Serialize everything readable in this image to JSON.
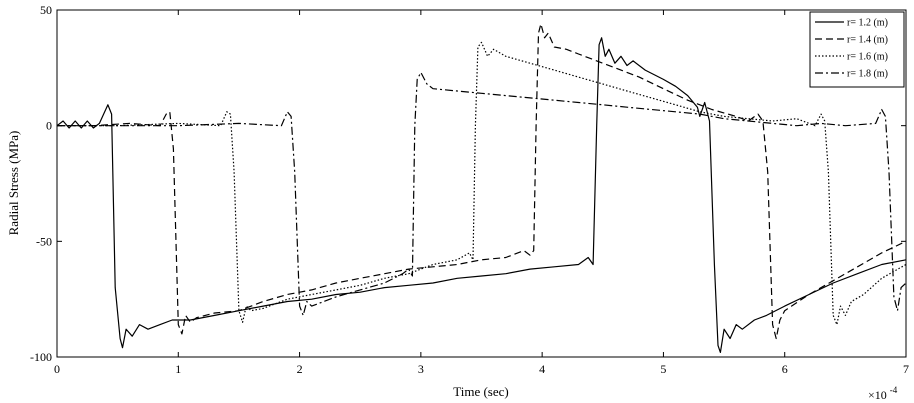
{
  "chart_data": {
    "type": "line",
    "title": "",
    "xlabel": "Time (sec)",
    "ylabel": "Radial Stress (MPa)",
    "x_multiplier_label": "×10",
    "x_multiplier_exponent": "-4",
    "xlim": [
      0,
      7
    ],
    "ylim": [
      -100,
      50
    ],
    "xticks": [
      "0",
      "1",
      "2",
      "3",
      "4",
      "5",
      "6",
      "7"
    ],
    "yticks": [
      "50",
      "0",
      "-50",
      "-100"
    ],
    "ytick_values": [
      50,
      0,
      -50,
      -100
    ],
    "grid": false,
    "legend_position": "top-right",
    "series": [
      {
        "name": "r= 1.2 (m)",
        "style": "solid",
        "color": "#000000",
        "points": [
          [
            0,
            0
          ],
          [
            0.05,
            2
          ],
          [
            0.1,
            -1
          ],
          [
            0.15,
            2
          ],
          [
            0.2,
            -1
          ],
          [
            0.25,
            2
          ],
          [
            0.3,
            -1
          ],
          [
            0.35,
            1
          ],
          [
            0.42,
            9
          ],
          [
            0.45,
            5
          ],
          [
            0.48,
            -70
          ],
          [
            0.52,
            -92
          ],
          [
            0.54,
            -96
          ],
          [
            0.57,
            -88
          ],
          [
            0.62,
            -91
          ],
          [
            0.68,
            -86
          ],
          [
            0.75,
            -88
          ],
          [
            0.85,
            -86
          ],
          [
            0.95,
            -84
          ],
          [
            1.1,
            -84
          ],
          [
            1.3,
            -82
          ],
          [
            1.5,
            -80
          ],
          [
            1.7,
            -78
          ],
          [
            1.9,
            -76
          ],
          [
            2.1,
            -75
          ],
          [
            2.3,
            -73
          ],
          [
            2.5,
            -72
          ],
          [
            2.7,
            -70
          ],
          [
            2.9,
            -69
          ],
          [
            3.1,
            -68
          ],
          [
            3.3,
            -66
          ],
          [
            3.5,
            -65
          ],
          [
            3.7,
            -64
          ],
          [
            3.9,
            -62
          ],
          [
            4.1,
            -61
          ],
          [
            4.3,
            -60
          ],
          [
            4.38,
            -57
          ],
          [
            4.42,
            -60
          ],
          [
            4.45,
            0
          ],
          [
            4.47,
            35
          ],
          [
            4.49,
            38
          ],
          [
            4.52,
            30
          ],
          [
            4.55,
            33
          ],
          [
            4.6,
            27
          ],
          [
            4.65,
            30
          ],
          [
            4.7,
            26
          ],
          [
            4.75,
            28
          ],
          [
            4.85,
            24
          ],
          [
            5.0,
            20
          ],
          [
            5.1,
            17
          ],
          [
            5.2,
            13
          ],
          [
            5.28,
            8
          ],
          [
            5.3,
            4
          ],
          [
            5.34,
            10
          ],
          [
            5.38,
            2
          ],
          [
            5.42,
            -60
          ],
          [
            5.45,
            -95
          ],
          [
            5.47,
            -98
          ],
          [
            5.5,
            -88
          ],
          [
            5.55,
            -92
          ],
          [
            5.6,
            -86
          ],
          [
            5.65,
            -88
          ],
          [
            5.75,
            -84
          ],
          [
            5.85,
            -82
          ],
          [
            6.0,
            -78
          ],
          [
            6.2,
            -73
          ],
          [
            6.4,
            -68
          ],
          [
            6.6,
            -64
          ],
          [
            6.8,
            -60
          ],
          [
            7.0,
            -58
          ]
        ]
      },
      {
        "name": "r= 1.4 (m)",
        "style": "dashed",
        "color": "#000000",
        "points": [
          [
            0,
            0
          ],
          [
            0.3,
            0
          ],
          [
            0.6,
            1
          ],
          [
            0.85,
            0
          ],
          [
            0.9,
            5
          ],
          [
            0.93,
            6
          ],
          [
            0.96,
            -10
          ],
          [
            1.0,
            -86
          ],
          [
            1.03,
            -90
          ],
          [
            1.06,
            -82
          ],
          [
            1.1,
            -85
          ],
          [
            1.15,
            -83
          ],
          [
            1.3,
            -81
          ],
          [
            1.5,
            -80
          ],
          [
            1.7,
            -76
          ],
          [
            1.9,
            -73
          ],
          [
            2.1,
            -71
          ],
          [
            2.3,
            -68
          ],
          [
            2.5,
            -66
          ],
          [
            2.7,
            -64
          ],
          [
            2.9,
            -62
          ],
          [
            3.1,
            -61
          ],
          [
            3.3,
            -60
          ],
          [
            3.5,
            -58
          ],
          [
            3.7,
            -57
          ],
          [
            3.85,
            -54
          ],
          [
            3.9,
            -56
          ],
          [
            3.93,
            -54
          ],
          [
            3.95,
            0
          ],
          [
            3.97,
            40
          ],
          [
            3.99,
            44
          ],
          [
            4.02,
            38
          ],
          [
            4.05,
            40
          ],
          [
            4.1,
            34
          ],
          [
            4.2,
            33
          ],
          [
            4.3,
            31
          ],
          [
            4.4,
            29
          ],
          [
            4.6,
            25
          ],
          [
            4.8,
            21
          ],
          [
            5.0,
            16
          ],
          [
            5.2,
            11
          ],
          [
            5.4,
            7
          ],
          [
            5.6,
            4
          ],
          [
            5.7,
            2
          ],
          [
            5.78,
            5
          ],
          [
            5.82,
            2
          ],
          [
            5.86,
            -20
          ],
          [
            5.9,
            -86
          ],
          [
            5.93,
            -92
          ],
          [
            5.96,
            -84
          ],
          [
            6.0,
            -80
          ],
          [
            6.2,
            -73
          ],
          [
            6.4,
            -67
          ],
          [
            6.6,
            -61
          ],
          [
            6.8,
            -55
          ],
          [
            7.0,
            -50
          ]
        ]
      },
      {
        "name": "r= 1.6 (m)",
        "style": "dotted",
        "color": "#000000",
        "points": [
          [
            0,
            0
          ],
          [
            0.5,
            0
          ],
          [
            1.0,
            1
          ],
          [
            1.35,
            0
          ],
          [
            1.4,
            6
          ],
          [
            1.43,
            5
          ],
          [
            1.46,
            -20
          ],
          [
            1.5,
            -80
          ],
          [
            1.53,
            -85
          ],
          [
            1.56,
            -78
          ],
          [
            1.6,
            -80
          ],
          [
            1.7,
            -79
          ],
          [
            1.9,
            -75
          ],
          [
            2.1,
            -73
          ],
          [
            2.3,
            -71
          ],
          [
            2.5,
            -69
          ],
          [
            2.7,
            -66
          ],
          [
            2.9,
            -64
          ],
          [
            3.1,
            -60
          ],
          [
            3.3,
            -58
          ],
          [
            3.4,
            -55
          ],
          [
            3.43,
            -58
          ],
          [
            3.45,
            0
          ],
          [
            3.47,
            34
          ],
          [
            3.5,
            36
          ],
          [
            3.55,
            30
          ],
          [
            3.6,
            33
          ],
          [
            3.7,
            30
          ],
          [
            3.9,
            27
          ],
          [
            4.1,
            24
          ],
          [
            4.3,
            21
          ],
          [
            4.5,
            18
          ],
          [
            4.7,
            15
          ],
          [
            4.9,
            12
          ],
          [
            5.1,
            9
          ],
          [
            5.3,
            6
          ],
          [
            5.5,
            4
          ],
          [
            5.7,
            3
          ],
          [
            5.9,
            2
          ],
          [
            6.1,
            3
          ],
          [
            6.25,
            0
          ],
          [
            6.3,
            5
          ],
          [
            6.33,
            2
          ],
          [
            6.36,
            -20
          ],
          [
            6.4,
            -82
          ],
          [
            6.43,
            -86
          ],
          [
            6.46,
            -78
          ],
          [
            6.5,
            -82
          ],
          [
            6.55,
            -76
          ],
          [
            6.65,
            -73
          ],
          [
            6.8,
            -66
          ],
          [
            7.0,
            -60
          ]
        ]
      },
      {
        "name": "r= 1.8 (m)",
        "style": "dashdot",
        "color": "#000000",
        "points": [
          [
            0,
            0
          ],
          [
            0.5,
            0
          ],
          [
            1.0,
            0
          ],
          [
            1.5,
            1
          ],
          [
            1.85,
            0
          ],
          [
            1.9,
            6
          ],
          [
            1.93,
            4
          ],
          [
            1.96,
            -20
          ],
          [
            2.0,
            -78
          ],
          [
            2.03,
            -82
          ],
          [
            2.06,
            -76
          ],
          [
            2.1,
            -78
          ],
          [
            2.3,
            -74
          ],
          [
            2.5,
            -71
          ],
          [
            2.7,
            -68
          ],
          [
            2.85,
            -64
          ],
          [
            2.9,
            -62
          ],
          [
            2.93,
            -65
          ],
          [
            2.95,
            0
          ],
          [
            2.97,
            20
          ],
          [
            3.0,
            23
          ],
          [
            3.05,
            18
          ],
          [
            3.1,
            16
          ],
          [
            3.3,
            15
          ],
          [
            3.5,
            14
          ],
          [
            3.7,
            13
          ],
          [
            3.9,
            12
          ],
          [
            4.1,
            11
          ],
          [
            4.3,
            10
          ],
          [
            4.5,
            9
          ],
          [
            4.7,
            8
          ],
          [
            4.9,
            7
          ],
          [
            5.1,
            6
          ],
          [
            5.3,
            5
          ],
          [
            5.5,
            3
          ],
          [
            5.7,
            2
          ],
          [
            5.9,
            1
          ],
          [
            6.1,
            0
          ],
          [
            6.3,
            1
          ],
          [
            6.5,
            0
          ],
          [
            6.75,
            1
          ],
          [
            6.8,
            7
          ],
          [
            6.83,
            4
          ],
          [
            6.86,
            -20
          ],
          [
            6.9,
            -74
          ],
          [
            6.93,
            -80
          ],
          [
            6.96,
            -70
          ],
          [
            7.0,
            -68
          ]
        ]
      }
    ]
  }
}
